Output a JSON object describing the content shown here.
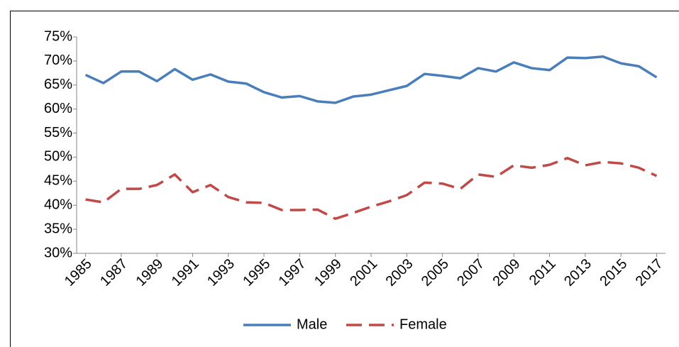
{
  "chart_data": {
    "type": "line",
    "x": [
      1985,
      1986,
      1987,
      1988,
      1989,
      1990,
      1991,
      1992,
      1993,
      1994,
      1995,
      1996,
      1997,
      1998,
      1999,
      2000,
      2001,
      2002,
      2003,
      2004,
      2005,
      2006,
      2007,
      2008,
      2009,
      2010,
      2011,
      2012,
      2013,
      2014,
      2015,
      2016,
      2017
    ],
    "series": [
      {
        "name": "Male",
        "color": "#4a7ebb",
        "style": "solid",
        "values": [
          67.1,
          65.4,
          67.8,
          67.8,
          65.8,
          68.3,
          66.1,
          67.2,
          65.7,
          65.3,
          63.5,
          62.4,
          62.7,
          61.6,
          61.3,
          62.6,
          63.0,
          63.9,
          64.8,
          67.3,
          66.9,
          66.4,
          68.5,
          67.8,
          69.7,
          68.5,
          68.1,
          70.7,
          70.6,
          70.9,
          69.5,
          68.9,
          66.6
        ]
      },
      {
        "name": "Female",
        "color": "#be4b48",
        "style": "dashed",
        "values": [
          41.2,
          40.6,
          43.4,
          43.4,
          44.2,
          46.4,
          42.7,
          44.2,
          41.7,
          40.6,
          40.5,
          39.0,
          39.0,
          39.1,
          37.2,
          38.4,
          39.7,
          40.8,
          42.1,
          44.7,
          44.5,
          43.4,
          46.4,
          45.9,
          48.3,
          47.8,
          48.4,
          49.8,
          48.3,
          49.0,
          48.7,
          47.8,
          46.1
        ]
      }
    ],
    "xlim": [
      1984.5,
      2017.5
    ],
    "xticks": [
      1985,
      1987,
      1989,
      1991,
      1993,
      1995,
      1997,
      1999,
      2001,
      2003,
      2005,
      2007,
      2009,
      2011,
      2013,
      2015,
      2017
    ],
    "ylim": [
      30,
      75
    ],
    "yticks": [
      {
        "value": 30,
        "label": "30%"
      },
      {
        "value": 35,
        "label": "35%"
      },
      {
        "value": 40,
        "label": "40%"
      },
      {
        "value": 45,
        "label": "45%"
      },
      {
        "value": 50,
        "label": "50%"
      },
      {
        "value": 55,
        "label": "55%"
      },
      {
        "value": 60,
        "label": "60%"
      },
      {
        "value": 65,
        "label": "65%"
      },
      {
        "value": 70,
        "label": "70%"
      },
      {
        "value": 75,
        "label": "75%"
      }
    ],
    "grid": false,
    "legend": "bottom"
  }
}
